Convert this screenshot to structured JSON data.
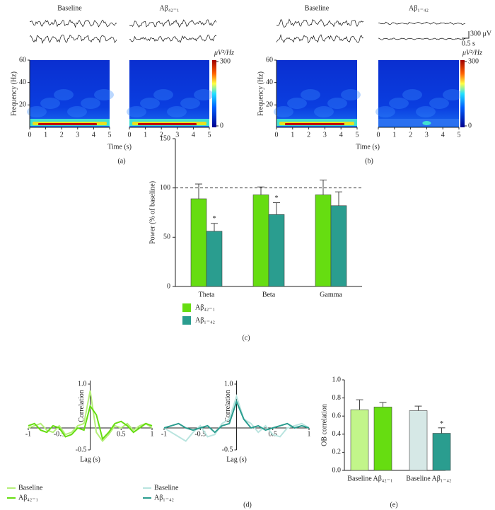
{
  "chart_data": [
    {
      "type": "heatmap",
      "panel_label": "(a)",
      "titles": [
        "Baseline",
        "Aβ₄₂₋₁"
      ],
      "ylabel": "Frequency (Hz)",
      "xlabel": "Time (s)",
      "xlim": [
        0,
        5
      ],
      "xticks": [
        0,
        1,
        2,
        3,
        4,
        5
      ],
      "ylim": [
        0,
        60
      ],
      "yticks": [
        20,
        40,
        60
      ],
      "clim": [
        0,
        300
      ],
      "cticks": [
        0,
        300
      ],
      "clabel": "μV²/Hz"
    },
    {
      "type": "heatmap",
      "panel_label": "(b)",
      "titles": [
        "Baseline",
        "Aβ₁₋₄₂"
      ],
      "ylabel": "Frequency (Hz)",
      "xlabel": "Time (s)",
      "xlim": [
        0,
        5
      ],
      "xticks": [
        0,
        1,
        2,
        3,
        4,
        5
      ],
      "ylim": [
        0,
        60
      ],
      "yticks": [
        20,
        40,
        60
      ],
      "clim": [
        0,
        300
      ],
      "cticks": [
        0,
        300
      ],
      "clabel": "μV²/Hz",
      "scalebar": {
        "y_label": "300 μV",
        "x_label": "0.5 s"
      }
    },
    {
      "type": "groupbar",
      "panel_label": "(c)",
      "ylabel": "Power (% of baseline)",
      "categories": [
        "Theta",
        "Beta",
        "Gamma"
      ],
      "ylim": [
        0,
        150
      ],
      "yticks": [
        0,
        50,
        100,
        150
      ],
      "reference_line": 100,
      "series": [
        {
          "name": "Aβ₄₂₋₁",
          "color": "#66dd11",
          "values": [
            89,
            93,
            93
          ],
          "errors": [
            15,
            8,
            15
          ],
          "markers": [
            null,
            null,
            null
          ]
        },
        {
          "name": "Aβ₁₋₄₂",
          "color": "#2a9d8f",
          "values": [
            56,
            73,
            82
          ],
          "errors": [
            8,
            12,
            14
          ],
          "markers": [
            "*",
            "*",
            null
          ]
        }
      ]
    },
    {
      "type": "line",
      "panel_label": "(d)",
      "xlabel": "Lag (s)",
      "ylabel": "Correlation",
      "x": [
        -1,
        -0.9,
        -0.8,
        -0.7,
        -0.6,
        -0.5,
        -0.4,
        -0.3,
        -0.2,
        -0.1,
        0,
        0.1,
        0.2,
        0.3,
        0.4,
        0.5,
        0.6,
        0.7,
        0.8,
        0.9,
        1
      ],
      "xlim": [
        -1,
        1
      ],
      "xticks": [
        -1,
        -0.5,
        0.5,
        1
      ],
      "ylim": [
        -0.5,
        1
      ],
      "yticks": [
        -0.5,
        {
          "value": 1,
          "label": "1.0"
        }
      ],
      "series": [
        {
          "name": "Baseline",
          "color": "#b5ef7a",
          "values": [
            0,
            0.05,
            0.1,
            -0.05,
            -0.1,
            0.05,
            -0.15,
            -0.1,
            0.05,
            0.1,
            0.85,
            -0.1,
            -0.3,
            -0.15,
            0.05,
            0,
            0.1,
            -0.05,
            0.05,
            0.1,
            0
          ]
        },
        {
          "name": "Aβ₄₂₋₁",
          "color": "#66dd11",
          "values": [
            0.05,
            0.1,
            -0.05,
            -0.1,
            0.05,
            0,
            -0.2,
            -0.15,
            0,
            -0.05,
            0.5,
            0.3,
            -0.25,
            -0.1,
            0.1,
            0.15,
            0.05,
            -0.1,
            0,
            0.1,
            0.05
          ]
        }
      ]
    },
    {
      "type": "line",
      "xlabel": "Lag (s)",
      "ylabel": "Correlation",
      "x": [
        -1,
        -0.9,
        -0.8,
        -0.7,
        -0.6,
        -0.5,
        -0.4,
        -0.3,
        -0.2,
        -0.1,
        0,
        0.1,
        0.2,
        0.3,
        0.4,
        0.5,
        0.6,
        0.7,
        0.8,
        0.9,
        1
      ],
      "xlim": [
        -1,
        1
      ],
      "xticks": [
        -1,
        -0.5,
        0.5,
        1
      ],
      "ylim": [
        -0.5,
        1
      ],
      "yticks": [
        -0.5,
        {
          "value": 1,
          "label": "1.0"
        }
      ],
      "series": [
        {
          "name": "Baseline",
          "color": "#b9e4df",
          "values": [
            0,
            -0.1,
            -0.2,
            -0.3,
            -0.1,
            0.05,
            -0.2,
            -0.15,
            0.1,
            0.2,
            0.72,
            0.2,
            0.1,
            -0.1,
            0.05,
            -0.15,
            -0.2,
            0,
            0.05,
            0.1,
            0
          ]
        },
        {
          "name": "Aβ₁₋₄₂",
          "color": "#2a9d8f",
          "values": [
            0,
            0.05,
            0.1,
            0,
            -0.05,
            0,
            0.05,
            -0.1,
            0.05,
            0.1,
            0.6,
            0.2,
            0,
            0.05,
            -0.05,
            0,
            0.05,
            0.1,
            0,
            0.05,
            0
          ]
        }
      ]
    },
    {
      "type": "bar",
      "panel_label": "(e)",
      "ylabel": "OB correlation",
      "categories": [
        "Baseline",
        "Aβ₄₂₋₁",
        "Baseline",
        "Aβ₁₋₄₂"
      ],
      "values": [
        0.67,
        0.7,
        0.66,
        0.41
      ],
      "errors": [
        0.11,
        0.05,
        0.05,
        0.06
      ],
      "colors": [
        "#c2f58a",
        "#66dd11",
        "#d6e8e6",
        "#2a9d8f"
      ],
      "markers": [
        null,
        null,
        null,
        "*"
      ],
      "ylim": [
        0,
        1
      ],
      "yticks": [
        {
          "value": 0,
          "label": "0.0"
        },
        0.2,
        0.4,
        0.6,
        0.8,
        {
          "value": 1,
          "label": "1.0"
        }
      ]
    }
  ]
}
